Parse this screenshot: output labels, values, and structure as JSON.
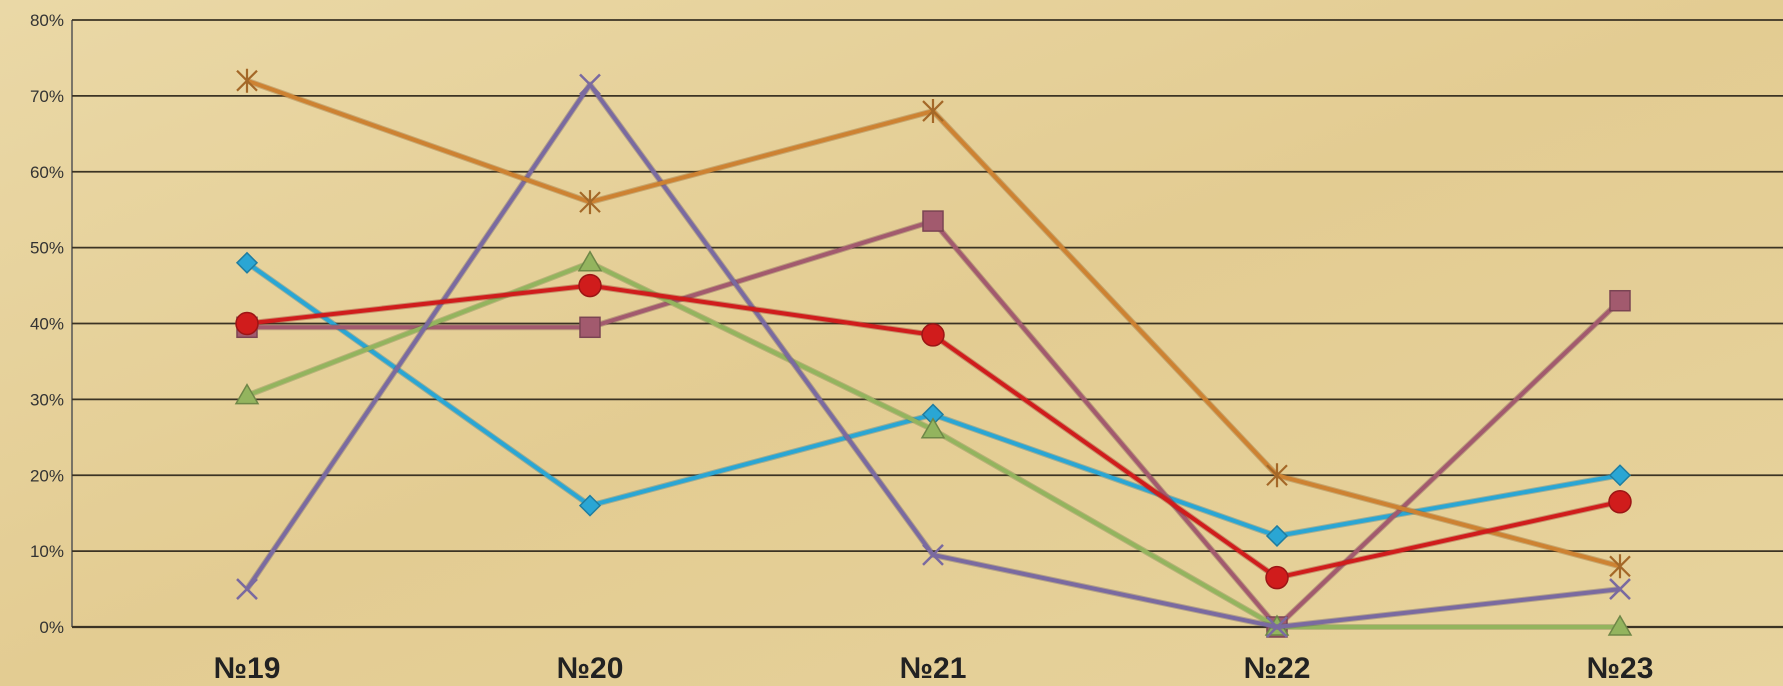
{
  "chart_data": {
    "type": "line",
    "categories": [
      "№19",
      "№20",
      "№21",
      "№22",
      "№23"
    ],
    "ylim": [
      0,
      80
    ],
    "y_ticks": [
      "0%",
      "10%",
      "20%",
      "30%",
      "40%",
      "50%",
      "60%",
      "70%",
      "80%"
    ],
    "grid": true,
    "legend": "none",
    "series": [
      {
        "color": "#2aa6d4",
        "marker": "diamond",
        "values": [
          48,
          16,
          28,
          12,
          20
        ]
      },
      {
        "color": "#a25a6e",
        "marker": "square",
        "values": [
          39.5,
          39.5,
          53.5,
          0,
          43
        ]
      },
      {
        "color": "#93b45e",
        "marker": "triangle",
        "values": [
          30.5,
          48,
          26,
          0,
          0
        ]
      },
      {
        "color": "#7a6aa0",
        "marker": "x",
        "values": [
          5,
          71.5,
          9.5,
          0,
          5
        ]
      },
      {
        "color": "#cd8232",
        "marker": "star",
        "values": [
          72,
          56,
          68,
          20,
          8
        ]
      },
      {
        "color": "#d01c1c",
        "marker": "circle",
        "values": [
          40,
          45,
          38.5,
          6.5,
          16.5
        ]
      }
    ]
  }
}
